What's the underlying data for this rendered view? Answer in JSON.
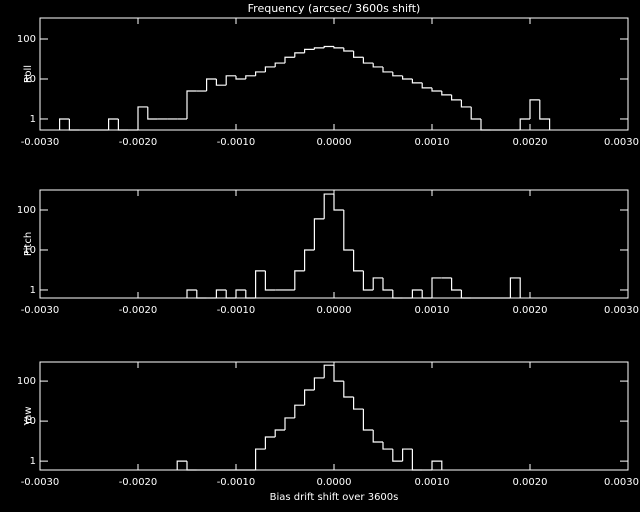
{
  "chart_data": [
    {
      "type": "histogram",
      "title": "Frequency (arcsec/ 3600s shift)",
      "ylabel": "Roll",
      "log_y": true,
      "color": "#ffffff",
      "xlim": [
        -0.003,
        0.003
      ],
      "ylim": [
        0.53,
        335
      ],
      "xticks": [
        {
          "value": -0.003,
          "label": "-0.0030"
        },
        {
          "value": -0.002,
          "label": "-0.0020"
        },
        {
          "value": -0.001,
          "label": "-0.0010"
        },
        {
          "value": 0,
          "label": "0.0000"
        },
        {
          "value": 0.001,
          "label": "0.0010"
        },
        {
          "value": 0.002,
          "label": "0.0020"
        },
        {
          "value": 0.003,
          "label": "0.0030"
        }
      ],
      "yticks": [
        1,
        10,
        100
      ],
      "bins": [
        -0.0028,
        -0.0027,
        -0.0026,
        -0.0025,
        -0.0024,
        -0.0023,
        -0.0022,
        -0.0021,
        -0.002,
        -0.0019,
        -0.0018,
        -0.0017,
        -0.0016,
        -0.0015,
        -0.0014,
        -0.0013,
        -0.0012,
        -0.0011,
        -0.001,
        -0.0009,
        -0.0008,
        -0.0007,
        -0.0006,
        -0.0005,
        -0.0004,
        -0.0003,
        -0.0002,
        -0.0001,
        0,
        0.0001,
        0.0002,
        0.0003,
        0.0004,
        0.0005,
        0.0006,
        0.0007,
        0.0008,
        0.0009,
        0.001,
        0.0011,
        0.0012,
        0.0013,
        0.0014,
        0.0015,
        0.0016,
        0.0017,
        0.0018,
        0.0019,
        0.002,
        0.0021,
        0.0022
      ],
      "values": [
        1,
        0,
        0,
        0,
        0,
        1,
        0,
        0,
        2,
        1,
        1,
        1,
        1,
        5,
        5,
        10,
        7,
        12,
        10,
        12,
        15,
        20,
        25,
        35,
        45,
        55,
        60,
        65,
        60,
        50,
        35,
        25,
        20,
        15,
        12,
        10,
        8,
        6,
        5,
        4,
        3,
        2,
        1,
        0,
        0,
        0,
        0,
        1,
        3,
        1
      ]
    },
    {
      "type": "histogram",
      "ylabel": "Pitch",
      "log_y": true,
      "color": "#ffffff",
      "xlim": [
        -0.003,
        0.003
      ],
      "ylim": [
        0.63,
        316
      ],
      "xticks": [
        {
          "value": -0.003,
          "label": "-0.0030"
        },
        {
          "value": -0.002,
          "label": "-0.0020"
        },
        {
          "value": -0.001,
          "label": "-0.0010"
        },
        {
          "value": 0,
          "label": "0.0000"
        },
        {
          "value": 0.001,
          "label": "0.0010"
        },
        {
          "value": 0.002,
          "label": "0.0020"
        },
        {
          "value": 0.003,
          "label": "0.0030"
        }
      ],
      "yticks": [
        1,
        10,
        100
      ],
      "bins": [
        -0.0015,
        -0.0014,
        -0.0013,
        -0.0012,
        -0.0011,
        -0.001,
        -0.0009,
        -0.0008,
        -0.0007,
        -0.0006,
        -0.0005,
        -0.0004,
        -0.0003,
        -0.0002,
        -0.0001,
        0,
        0.0001,
        0.0002,
        0.0003,
        0.0004,
        0.0005,
        0.0006,
        0.0007,
        0.0008,
        0.0009,
        0.001,
        0.0011,
        0.0012,
        0.0013,
        0.0014,
        0.0015,
        0.0016,
        0.0017,
        0.0018,
        0.0019
      ],
      "values": [
        1,
        0,
        0,
        1,
        0,
        1,
        0,
        3,
        1,
        1,
        1,
        3,
        10,
        60,
        250,
        100,
        10,
        3,
        1,
        2,
        1,
        0,
        0,
        1,
        0,
        2,
        2,
        1,
        0,
        0,
        0,
        0,
        0,
        2
      ]
    },
    {
      "type": "histogram",
      "ylabel": "Yaw",
      "xlabel": "Bias drift shift over 3600s",
      "log_y": true,
      "color": "#ffffff",
      "xlim": [
        -0.003,
        0.003
      ],
      "ylim": [
        0.6,
        300
      ],
      "xticks": [
        {
          "value": -0.003,
          "label": "-0.0030"
        },
        {
          "value": -0.002,
          "label": "-0.0020"
        },
        {
          "value": -0.001,
          "label": "-0.0010"
        },
        {
          "value": 0,
          "label": "0.0000"
        },
        {
          "value": 0.001,
          "label": "0.0010"
        },
        {
          "value": 0.002,
          "label": "0.0020"
        },
        {
          "value": 0.003,
          "label": "0.0030"
        }
      ],
      "yticks": [
        1,
        10,
        100
      ],
      "bins": [
        -0.0016,
        -0.0015,
        -0.0014,
        -0.0013,
        -0.0012,
        -0.0011,
        -0.001,
        -0.0009,
        -0.0008,
        -0.0007,
        -0.0006,
        -0.0005,
        -0.0004,
        -0.0003,
        -0.0002,
        -0.0001,
        0,
        0.0001,
        0.0002,
        0.0003,
        0.0004,
        0.0005,
        0.0006,
        0.0007,
        0.0008,
        0.0009,
        0.001,
        0.0011
      ],
      "values": [
        1,
        0,
        0,
        0,
        0,
        0,
        0,
        0,
        2,
        4,
        6,
        12,
        25,
        60,
        120,
        250,
        100,
        40,
        20,
        6,
        3,
        2,
        1,
        2,
        0,
        0,
        1
      ]
    }
  ]
}
